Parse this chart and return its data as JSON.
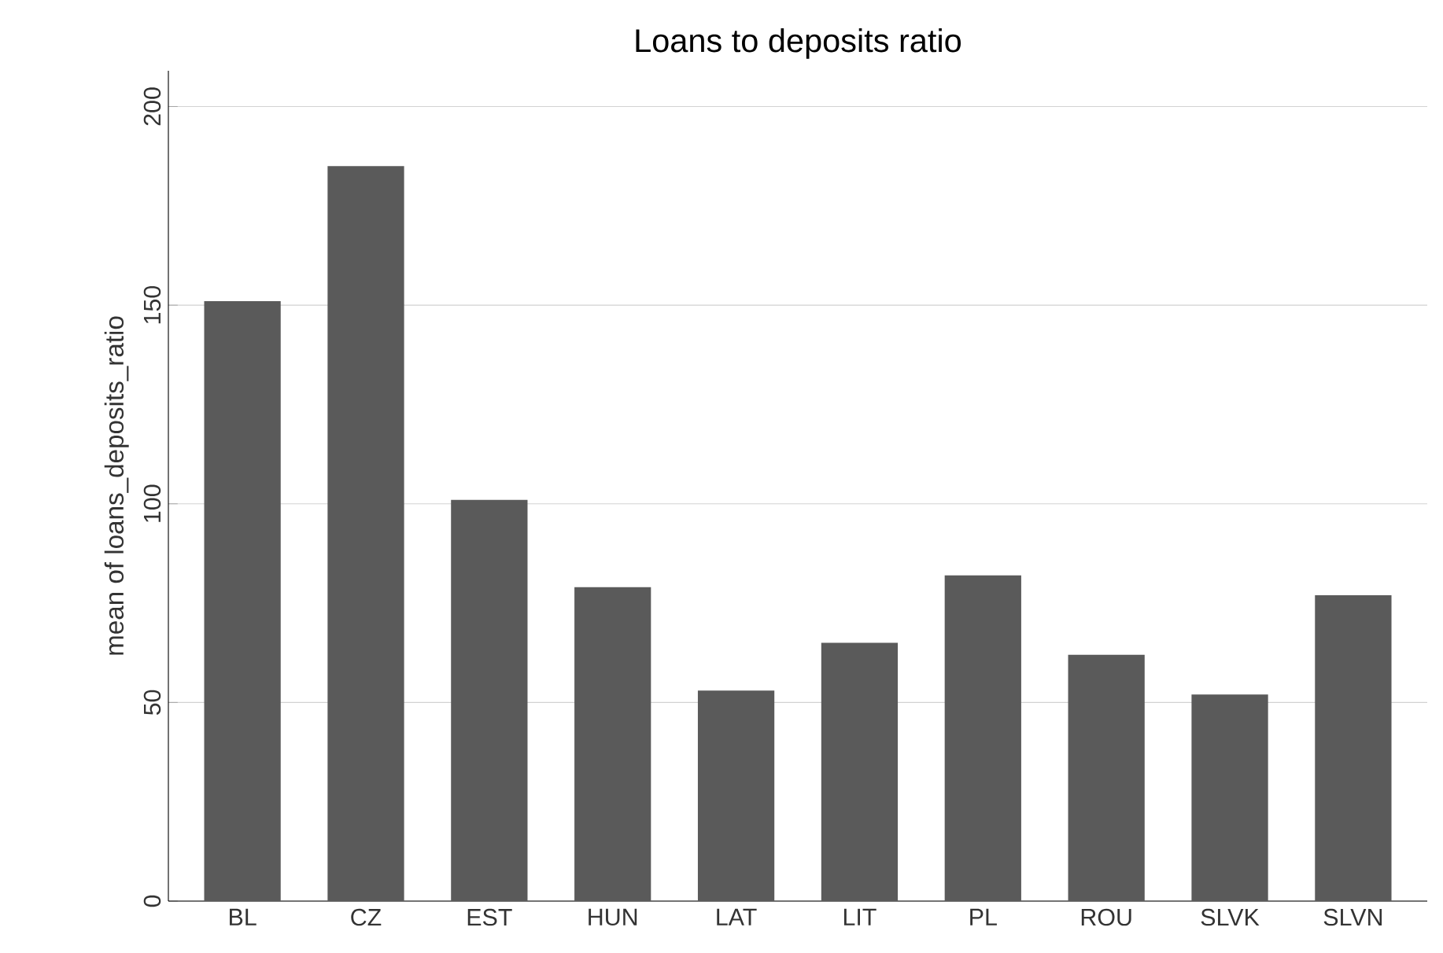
{
  "chart_data": {
    "type": "bar",
    "title": "Loans to deposits ratio",
    "ylabel": "mean of loans_deposits_ratio",
    "categories": [
      "BL",
      "CZ",
      "EST",
      "HUN",
      "LAT",
      "LIT",
      "PL",
      "ROU",
      "SLVK",
      "SLVN"
    ],
    "values": [
      151,
      185,
      101,
      79,
      53,
      65,
      82,
      62,
      52,
      77
    ],
    "color": "#5a5a5a",
    "ylim": [
      0,
      209
    ],
    "yticks": [
      0,
      50,
      100,
      150,
      200
    ],
    "grid": "y"
  }
}
